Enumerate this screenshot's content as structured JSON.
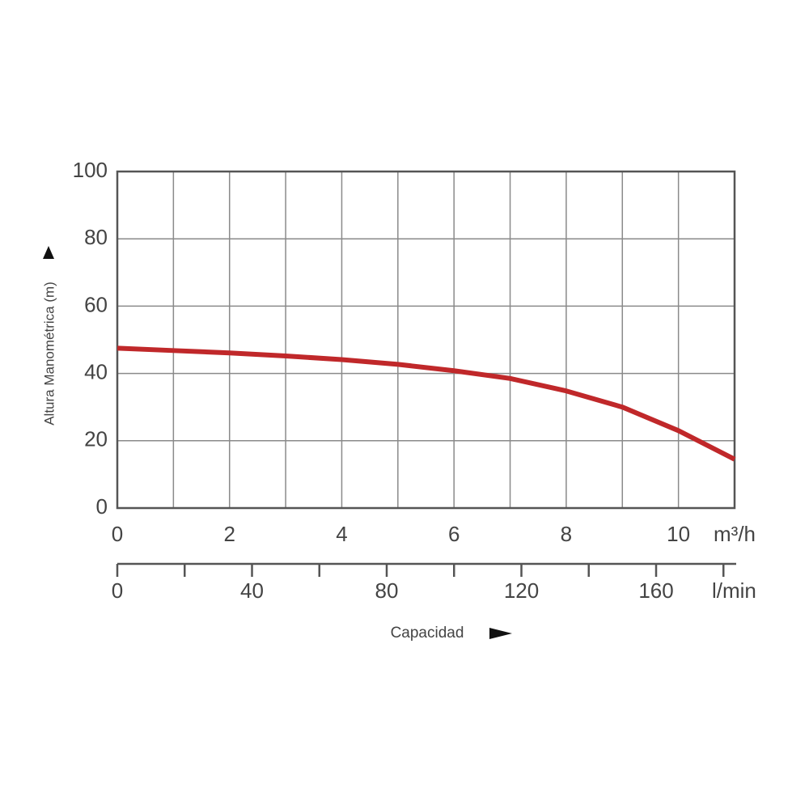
{
  "chart_data": {
    "type": "line",
    "y_label": "Altura Manométrica (m)",
    "x_label": "Capacidad",
    "x_unit": "m³/h",
    "x2_unit": "l/min",
    "x": [
      0,
      1,
      2,
      3,
      4,
      5,
      6,
      7,
      8,
      9,
      10,
      11
    ],
    "series": [
      {
        "color": "#c0282a",
        "values": [
          47.5,
          46.8,
          46.1,
          45.2,
          44.1,
          42.7,
          40.8,
          38.5,
          34.8,
          30,
          23,
          14.5
        ]
      }
    ],
    "xlim": [
      0,
      11
    ],
    "xticks": [
      0,
      2,
      4,
      6,
      8,
      10
    ],
    "x_minor_ticks": [
      1,
      3,
      5,
      7,
      9,
      11
    ],
    "ylim": [
      0,
      100
    ],
    "yticks": [
      0,
      20,
      40,
      60,
      80,
      100
    ],
    "x2lim": [
      0,
      183.3
    ],
    "x2ticks": [
      0,
      40,
      80,
      120,
      160
    ],
    "x2_minor_ticks": [
      20,
      60,
      100,
      140,
      180
    ],
    "grid": true
  }
}
